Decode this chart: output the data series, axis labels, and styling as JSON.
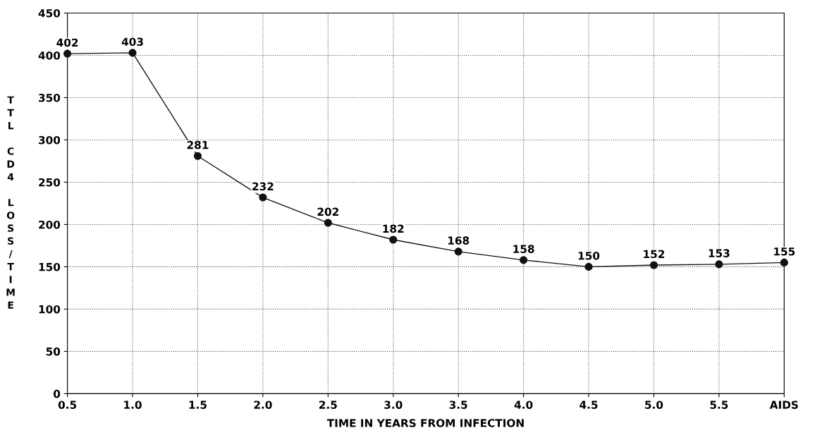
{
  "chart_data": {
    "type": "line",
    "xlabel": "TIME IN YEARS FROM INFECTION",
    "ylabel": "TTL CD4 LOSS/TIME",
    "categories": [
      "0.5",
      "1.0",
      "1.5",
      "2.0",
      "2.5",
      "3.0",
      "3.5",
      "4.0",
      "4.5",
      "5.0",
      "5.5",
      "AIDS"
    ],
    "series": [
      {
        "color": "#111111",
        "values": [
          402,
          403,
          281,
          232,
          202,
          182,
          168,
          158,
          150,
          152,
          153,
          155
        ]
      }
    ],
    "ylim": [
      0,
      450
    ],
    "yticks": [
      0,
      50,
      100,
      150,
      200,
      250,
      300,
      350,
      400,
      450
    ],
    "grid": true,
    "marker": "circle",
    "line_style": "solid",
    "data_labels": true
  }
}
